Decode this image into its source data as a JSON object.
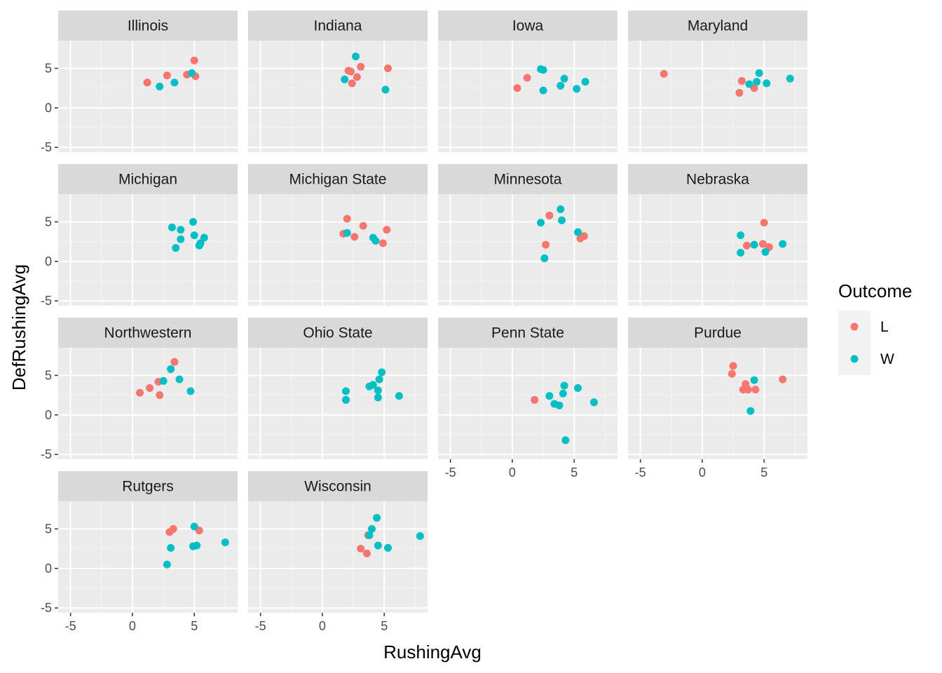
{
  "chart_data": {
    "type": "scatter",
    "layout": "facet_wrap",
    "xlabel": "RushingAvg",
    "ylabel": "DefRushingAvg",
    "xlim": [
      -6,
      8.5
    ],
    "ylim": [
      -5.6,
      8.5
    ],
    "x_ticks": [
      -5,
      0,
      5
    ],
    "y_ticks": [
      -5,
      0,
      5
    ],
    "grid": true,
    "legend": {
      "title": "Outcome",
      "position": "right",
      "items": [
        {
          "label": "L",
          "color": "#F8766D"
        },
        {
          "label": "W",
          "color": "#00BFC4"
        }
      ]
    },
    "colors": {
      "L": "#F8766D",
      "W": "#00BFC4",
      "panel_bg": "#EBEBEB",
      "strip_bg": "#D9D9D9"
    },
    "panels": [
      {
        "title": "Illinois",
        "points": [
          {
            "x": 1.2,
            "y": 3.2,
            "o": "L"
          },
          {
            "x": 2.8,
            "y": 4.1,
            "o": "L"
          },
          {
            "x": 4.4,
            "y": 4.2,
            "o": "L"
          },
          {
            "x": 5.0,
            "y": 6.0,
            "o": "L"
          },
          {
            "x": 5.1,
            "y": 4.0,
            "o": "L"
          },
          {
            "x": 2.2,
            "y": 2.7,
            "o": "W"
          },
          {
            "x": 3.4,
            "y": 3.2,
            "o": "W"
          },
          {
            "x": 4.8,
            "y": 4.4,
            "o": "W"
          }
        ]
      },
      {
        "title": "Indiana",
        "points": [
          {
            "x": 2.1,
            "y": 4.7,
            "o": "L"
          },
          {
            "x": 2.3,
            "y": 4.6,
            "o": "L"
          },
          {
            "x": 2.8,
            "y": 3.9,
            "o": "L"
          },
          {
            "x": 3.1,
            "y": 5.2,
            "o": "L"
          },
          {
            "x": 2.4,
            "y": 3.1,
            "o": "L"
          },
          {
            "x": 5.3,
            "y": 5.0,
            "o": "L"
          },
          {
            "x": 2.7,
            "y": 6.5,
            "o": "W"
          },
          {
            "x": 1.8,
            "y": 3.6,
            "o": "W"
          },
          {
            "x": 5.1,
            "y": 2.3,
            "o": "W"
          }
        ]
      },
      {
        "title": "Iowa",
        "points": [
          {
            "x": 0.4,
            "y": 2.5,
            "o": "L"
          },
          {
            "x": 1.2,
            "y": 3.8,
            "o": "L"
          },
          {
            "x": 2.3,
            "y": 4.9,
            "o": "W"
          },
          {
            "x": 2.5,
            "y": 4.8,
            "o": "W"
          },
          {
            "x": 2.5,
            "y": 2.2,
            "o": "W"
          },
          {
            "x": 3.9,
            "y": 2.8,
            "o": "W"
          },
          {
            "x": 4.2,
            "y": 3.7,
            "o": "W"
          },
          {
            "x": 5.2,
            "y": 2.4,
            "o": "W"
          },
          {
            "x": 5.9,
            "y": 3.3,
            "o": "W"
          }
        ]
      },
      {
        "title": "Maryland",
        "points": [
          {
            "x": -3.1,
            "y": 4.3,
            "o": "L"
          },
          {
            "x": 3.0,
            "y": 1.9,
            "o": "L"
          },
          {
            "x": 3.2,
            "y": 3.4,
            "o": "L"
          },
          {
            "x": 4.2,
            "y": 2.5,
            "o": "L"
          },
          {
            "x": 3.8,
            "y": 3.0,
            "o": "W"
          },
          {
            "x": 4.4,
            "y": 3.3,
            "o": "W"
          },
          {
            "x": 4.6,
            "y": 4.4,
            "o": "W"
          },
          {
            "x": 5.2,
            "y": 3.1,
            "o": "W"
          },
          {
            "x": 7.1,
            "y": 3.7,
            "o": "W"
          }
        ]
      },
      {
        "title": "Michigan",
        "points": [
          {
            "x": 3.2,
            "y": 4.3,
            "o": "W"
          },
          {
            "x": 3.9,
            "y": 4.0,
            "o": "W"
          },
          {
            "x": 3.9,
            "y": 2.8,
            "o": "W"
          },
          {
            "x": 3.5,
            "y": 1.7,
            "o": "W"
          },
          {
            "x": 4.9,
            "y": 5.0,
            "o": "W"
          },
          {
            "x": 5.0,
            "y": 3.3,
            "o": "W"
          },
          {
            "x": 5.4,
            "y": 2.0,
            "o": "W"
          },
          {
            "x": 5.5,
            "y": 2.3,
            "o": "W"
          },
          {
            "x": 5.8,
            "y": 3.0,
            "o": "W"
          }
        ]
      },
      {
        "title": "Michigan State",
        "points": [
          {
            "x": 2.0,
            "y": 5.4,
            "o": "L"
          },
          {
            "x": 1.7,
            "y": 3.5,
            "o": "L"
          },
          {
            "x": 2.6,
            "y": 3.1,
            "o": "L"
          },
          {
            "x": 3.3,
            "y": 4.5,
            "o": "L"
          },
          {
            "x": 4.9,
            "y": 2.3,
            "o": "L"
          },
          {
            "x": 5.2,
            "y": 4.0,
            "o": "L"
          },
          {
            "x": 2.0,
            "y": 3.6,
            "o": "W"
          },
          {
            "x": 4.1,
            "y": 3.0,
            "o": "W"
          },
          {
            "x": 4.3,
            "y": 2.6,
            "o": "W"
          }
        ]
      },
      {
        "title": "Minnesota",
        "points": [
          {
            "x": 3.0,
            "y": 5.8,
            "o": "L"
          },
          {
            "x": 2.7,
            "y": 2.1,
            "o": "L"
          },
          {
            "x": 5.5,
            "y": 2.9,
            "o": "L"
          },
          {
            "x": 5.8,
            "y": 3.2,
            "o": "L"
          },
          {
            "x": 2.3,
            "y": 4.9,
            "o": "W"
          },
          {
            "x": 3.9,
            "y": 6.6,
            "o": "W"
          },
          {
            "x": 4.0,
            "y": 5.2,
            "o": "W"
          },
          {
            "x": 5.3,
            "y": 3.7,
            "o": "W"
          },
          {
            "x": 2.6,
            "y": 0.4,
            "o": "W"
          }
        ]
      },
      {
        "title": "Nebraska",
        "points": [
          {
            "x": 5.0,
            "y": 4.9,
            "o": "L"
          },
          {
            "x": 3.6,
            "y": 2.0,
            "o": "L"
          },
          {
            "x": 4.9,
            "y": 2.2,
            "o": "L"
          },
          {
            "x": 5.4,
            "y": 1.8,
            "o": "L"
          },
          {
            "x": 3.1,
            "y": 3.3,
            "o": "W"
          },
          {
            "x": 4.2,
            "y": 2.1,
            "o": "W"
          },
          {
            "x": 3.1,
            "y": 1.1,
            "o": "W"
          },
          {
            "x": 5.1,
            "y": 1.2,
            "o": "W"
          },
          {
            "x": 6.5,
            "y": 2.2,
            "o": "W"
          }
        ]
      },
      {
        "title": "Northwestern",
        "points": [
          {
            "x": 3.4,
            "y": 6.7,
            "o": "L"
          },
          {
            "x": 0.6,
            "y": 2.8,
            "o": "L"
          },
          {
            "x": 1.4,
            "y": 3.4,
            "o": "L"
          },
          {
            "x": 2.1,
            "y": 4.2,
            "o": "L"
          },
          {
            "x": 2.2,
            "y": 2.5,
            "o": "L"
          },
          {
            "x": 2.5,
            "y": 4.3,
            "o": "W"
          },
          {
            "x": 3.1,
            "y": 5.8,
            "o": "W"
          },
          {
            "x": 3.8,
            "y": 4.5,
            "o": "W"
          },
          {
            "x": 4.7,
            "y": 3.0,
            "o": "W"
          }
        ]
      },
      {
        "title": "Ohio State",
        "points": [
          {
            "x": 1.9,
            "y": 3.0,
            "o": "W"
          },
          {
            "x": 1.9,
            "y": 1.9,
            "o": "W"
          },
          {
            "x": 3.8,
            "y": 3.6,
            "o": "W"
          },
          {
            "x": 4.1,
            "y": 3.8,
            "o": "W"
          },
          {
            "x": 4.5,
            "y": 3.1,
            "o": "W"
          },
          {
            "x": 4.5,
            "y": 2.2,
            "o": "W"
          },
          {
            "x": 4.6,
            "y": 4.5,
            "o": "W"
          },
          {
            "x": 4.8,
            "y": 5.4,
            "o": "W"
          },
          {
            "x": 6.2,
            "y": 2.4,
            "o": "W"
          }
        ]
      },
      {
        "title": "Penn State",
        "points": [
          {
            "x": 1.8,
            "y": 1.9,
            "o": "L"
          },
          {
            "x": 3.0,
            "y": 2.4,
            "o": "W"
          },
          {
            "x": 3.4,
            "y": 1.4,
            "o": "W"
          },
          {
            "x": 3.8,
            "y": 1.2,
            "o": "W"
          },
          {
            "x": 4.1,
            "y": 2.7,
            "o": "W"
          },
          {
            "x": 4.2,
            "y": 3.7,
            "o": "W"
          },
          {
            "x": 5.3,
            "y": 3.4,
            "o": "W"
          },
          {
            "x": 6.6,
            "y": 1.6,
            "o": "W"
          },
          {
            "x": 4.3,
            "y": -3.2,
            "o": "W"
          }
        ]
      },
      {
        "title": "Purdue",
        "points": [
          {
            "x": 2.5,
            "y": 6.2,
            "o": "L"
          },
          {
            "x": 2.4,
            "y": 5.2,
            "o": "L"
          },
          {
            "x": 3.5,
            "y": 3.9,
            "o": "L"
          },
          {
            "x": 3.3,
            "y": 3.2,
            "o": "L"
          },
          {
            "x": 3.7,
            "y": 3.2,
            "o": "L"
          },
          {
            "x": 4.3,
            "y": 3.2,
            "o": "L"
          },
          {
            "x": 6.5,
            "y": 4.5,
            "o": "L"
          },
          {
            "x": 4.2,
            "y": 4.4,
            "o": "W"
          },
          {
            "x": 3.9,
            "y": 0.5,
            "o": "W"
          }
        ]
      },
      {
        "title": "Rutgers",
        "points": [
          {
            "x": 3.0,
            "y": 4.6,
            "o": "L"
          },
          {
            "x": 3.3,
            "y": 5.0,
            "o": "L"
          },
          {
            "x": 5.4,
            "y": 4.8,
            "o": "L"
          },
          {
            "x": 5.0,
            "y": 5.3,
            "o": "W"
          },
          {
            "x": 3.1,
            "y": 2.6,
            "o": "W"
          },
          {
            "x": 4.9,
            "y": 2.8,
            "o": "W"
          },
          {
            "x": 5.2,
            "y": 2.9,
            "o": "W"
          },
          {
            "x": 7.5,
            "y": 3.3,
            "o": "W"
          },
          {
            "x": 2.8,
            "y": 0.5,
            "o": "W"
          }
        ]
      },
      {
        "title": "Wisconsin",
        "points": [
          {
            "x": 3.1,
            "y": 2.5,
            "o": "L"
          },
          {
            "x": 3.6,
            "y": 1.9,
            "o": "L"
          },
          {
            "x": 3.7,
            "y": 4.2,
            "o": "L"
          },
          {
            "x": 4.0,
            "y": 5.0,
            "o": "W"
          },
          {
            "x": 4.4,
            "y": 6.4,
            "o": "W"
          },
          {
            "x": 4.5,
            "y": 2.9,
            "o": "W"
          },
          {
            "x": 3.8,
            "y": 4.2,
            "o": "W"
          },
          {
            "x": 5.3,
            "y": 2.6,
            "o": "W"
          },
          {
            "x": 7.9,
            "y": 4.1,
            "o": "W"
          }
        ]
      }
    ]
  }
}
